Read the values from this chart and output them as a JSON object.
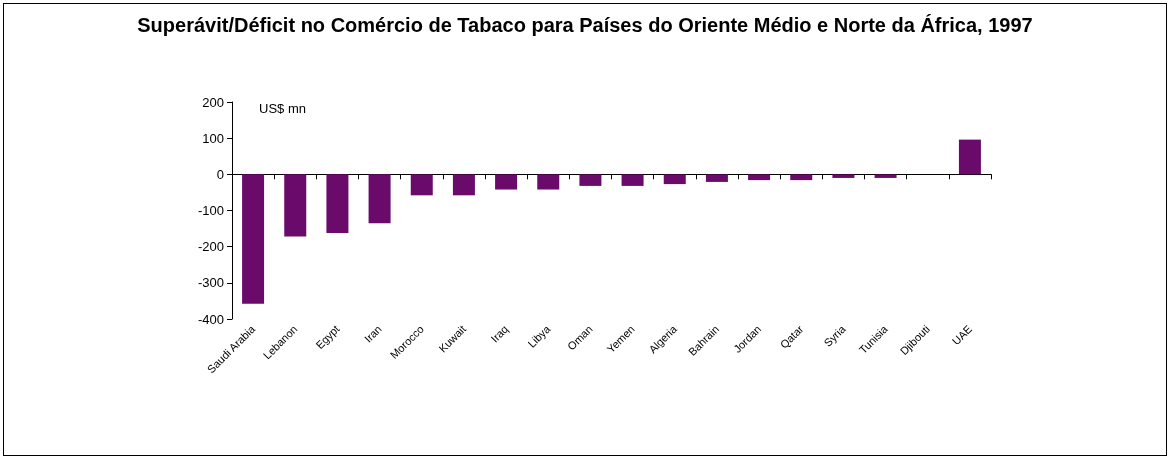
{
  "chart_data": {
    "type": "bar",
    "title": "Superávit/Déficit no Comércio de Tabaco para Países do Oriente Médio e Norte da África, 1997",
    "annotations": [
      "US$ mn"
    ],
    "categories": [
      "Saudi Arabia",
      "Lebanon",
      "Egypt",
      "Iran",
      "Morocco",
      "Kuwait",
      "Iraq",
      "Libya",
      "Oman",
      "Yemen",
      "Algeria",
      "Bahrain",
      "Jordan",
      "Qatar",
      "Syria",
      "Tunisia",
      "Djibouti",
      "UAE"
    ],
    "values": [
      -358,
      -172,
      -162,
      -135,
      -58,
      -58,
      -42,
      -42,
      -32,
      -32,
      -27,
      -21,
      -16,
      -16,
      -10,
      -10,
      0,
      96
    ],
    "color": "#6a0a6a",
    "ylim": [
      -400,
      200
    ],
    "yticks": [
      -400,
      -300,
      -200,
      -100,
      0,
      100,
      200
    ]
  }
}
